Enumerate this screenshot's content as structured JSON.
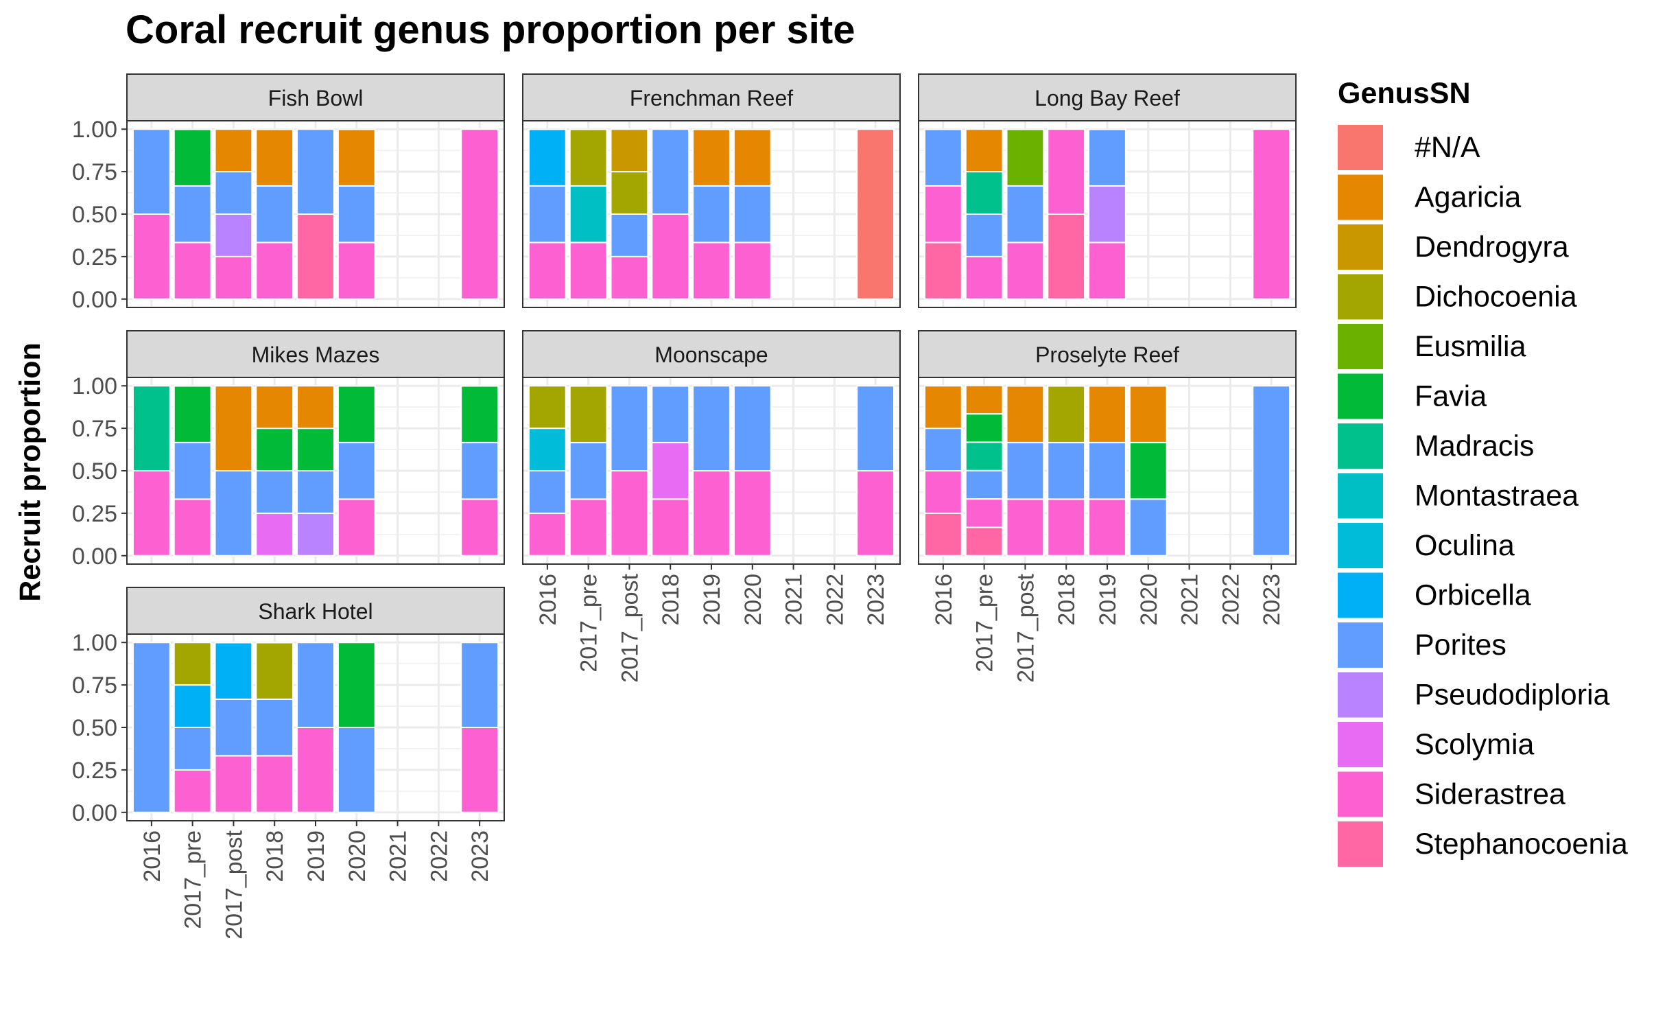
{
  "chart_data": {
    "type": "bar",
    "stacked": true,
    "title": "Coral recruit genus proportion per site",
    "ylabel": "Recruit proportion",
    "xlabel": "",
    "ylim": [
      0,
      1
    ],
    "y_ticks": [
      "0.00",
      "0.25",
      "0.50",
      "0.75",
      "1.00"
    ],
    "categories": [
      "2016",
      "2017_pre",
      "2017_post",
      "2018",
      "2019",
      "2020",
      "2021",
      "2022",
      "2023"
    ],
    "grid": true,
    "legend": {
      "title": "GenusSN",
      "placement": "right",
      "entries": [
        {
          "name": "#N/A",
          "color": "#F8766D"
        },
        {
          "name": "Agaricia",
          "color": "#E58700"
        },
        {
          "name": "Dendrogyra",
          "color": "#C99800"
        },
        {
          "name": "Dichocoenia",
          "color": "#A3A500"
        },
        {
          "name": "Eusmilia",
          "color": "#6BB100"
        },
        {
          "name": "Favia",
          "color": "#00BA38"
        },
        {
          "name": "Madracis",
          "color": "#00C08B"
        },
        {
          "name": "Montastraea",
          "color": "#00BFC4"
        },
        {
          "name": "Oculina",
          "color": "#00BCD8"
        },
        {
          "name": "Orbicella",
          "color": "#00B0F6"
        },
        {
          "name": "Porites",
          "color": "#619CFF"
        },
        {
          "name": "Pseudodiploria",
          "color": "#B983FF"
        },
        {
          "name": "Scolymia",
          "color": "#E76BF3"
        },
        {
          "name": "Siderastrea",
          "color": "#FD61D1"
        },
        {
          "name": "Stephanocoenia",
          "color": "#FF67A4"
        }
      ]
    },
    "facets": [
      {
        "site": "Fish Bowl",
        "bars": [
          {
            "x": "2016",
            "stack": [
              {
                "genus": "Siderastrea",
                "value": 0.5
              },
              {
                "genus": "Porites",
                "value": 0.5
              }
            ]
          },
          {
            "x": "2017_pre",
            "stack": [
              {
                "genus": "Siderastrea",
                "value": 0.333
              },
              {
                "genus": "Porites",
                "value": 0.333
              },
              {
                "genus": "Favia",
                "value": 0.333
              }
            ]
          },
          {
            "x": "2017_post",
            "stack": [
              {
                "genus": "Siderastrea",
                "value": 0.25
              },
              {
                "genus": "Pseudodiploria",
                "value": 0.25
              },
              {
                "genus": "Porites",
                "value": 0.25
              },
              {
                "genus": "Agaricia",
                "value": 0.25
              }
            ]
          },
          {
            "x": "2018",
            "stack": [
              {
                "genus": "Siderastrea",
                "value": 0.333
              },
              {
                "genus": "Porites",
                "value": 0.333
              },
              {
                "genus": "Agaricia",
                "value": 0.333
              }
            ]
          },
          {
            "x": "2019",
            "stack": [
              {
                "genus": "Stephanocoenia",
                "value": 0.5
              },
              {
                "genus": "Porites",
                "value": 0.5
              }
            ]
          },
          {
            "x": "2020",
            "stack": [
              {
                "genus": "Siderastrea",
                "value": 0.333
              },
              {
                "genus": "Porites",
                "value": 0.333
              },
              {
                "genus": "Agaricia",
                "value": 0.333
              }
            ]
          },
          {
            "x": "2023",
            "stack": [
              {
                "genus": "Siderastrea",
                "value": 1.0
              }
            ]
          }
        ]
      },
      {
        "site": "Frenchman Reef",
        "bars": [
          {
            "x": "2016",
            "stack": [
              {
                "genus": "Siderastrea",
                "value": 0.333
              },
              {
                "genus": "Porites",
                "value": 0.333
              },
              {
                "genus": "Orbicella",
                "value": 0.333
              }
            ]
          },
          {
            "x": "2017_pre",
            "stack": [
              {
                "genus": "Siderastrea",
                "value": 0.333
              },
              {
                "genus": "Montastraea",
                "value": 0.333
              },
              {
                "genus": "Dichocoenia",
                "value": 0.333
              }
            ]
          },
          {
            "x": "2017_post",
            "stack": [
              {
                "genus": "Siderastrea",
                "value": 0.25
              },
              {
                "genus": "Porites",
                "value": 0.25
              },
              {
                "genus": "Dichocoenia",
                "value": 0.25
              },
              {
                "genus": "Dendrogyra",
                "value": 0.25
              }
            ]
          },
          {
            "x": "2018",
            "stack": [
              {
                "genus": "Siderastrea",
                "value": 0.5
              },
              {
                "genus": "Porites",
                "value": 0.5
              }
            ]
          },
          {
            "x": "2019",
            "stack": [
              {
                "genus": "Siderastrea",
                "value": 0.333
              },
              {
                "genus": "Porites",
                "value": 0.333
              },
              {
                "genus": "Agaricia",
                "value": 0.333
              }
            ]
          },
          {
            "x": "2020",
            "stack": [
              {
                "genus": "Siderastrea",
                "value": 0.333
              },
              {
                "genus": "Porites",
                "value": 0.333
              },
              {
                "genus": "Agaricia",
                "value": 0.333
              }
            ]
          },
          {
            "x": "2023",
            "stack": [
              {
                "genus": "#N/A",
                "value": 1.0
              }
            ]
          }
        ]
      },
      {
        "site": "Long Bay Reef",
        "bars": [
          {
            "x": "2016",
            "stack": [
              {
                "genus": "Stephanocoenia",
                "value": 0.333
              },
              {
                "genus": "Siderastrea",
                "value": 0.333
              },
              {
                "genus": "Porites",
                "value": 0.333
              }
            ]
          },
          {
            "x": "2017_pre",
            "stack": [
              {
                "genus": "Siderastrea",
                "value": 0.25
              },
              {
                "genus": "Porites",
                "value": 0.25
              },
              {
                "genus": "Madracis",
                "value": 0.25
              },
              {
                "genus": "Agaricia",
                "value": 0.25
              }
            ]
          },
          {
            "x": "2017_post",
            "stack": [
              {
                "genus": "Siderastrea",
                "value": 0.333
              },
              {
                "genus": "Porites",
                "value": 0.333
              },
              {
                "genus": "Eusmilia",
                "value": 0.333
              }
            ]
          },
          {
            "x": "2018",
            "stack": [
              {
                "genus": "Stephanocoenia",
                "value": 0.5
              },
              {
                "genus": "Siderastrea",
                "value": 0.5
              }
            ]
          },
          {
            "x": "2019",
            "stack": [
              {
                "genus": "Siderastrea",
                "value": 0.333
              },
              {
                "genus": "Pseudodiploria",
                "value": 0.333
              },
              {
                "genus": "Porites",
                "value": 0.333
              }
            ]
          },
          {
            "x": "2023",
            "stack": [
              {
                "genus": "Siderastrea",
                "value": 1.0
              }
            ]
          }
        ]
      },
      {
        "site": "Mikes Mazes",
        "bars": [
          {
            "x": "2016",
            "stack": [
              {
                "genus": "Siderastrea",
                "value": 0.5
              },
              {
                "genus": "Madracis",
                "value": 0.5
              }
            ]
          },
          {
            "x": "2017_pre",
            "stack": [
              {
                "genus": "Siderastrea",
                "value": 0.333
              },
              {
                "genus": "Porites",
                "value": 0.333
              },
              {
                "genus": "Favia",
                "value": 0.333
              }
            ]
          },
          {
            "x": "2017_post",
            "stack": [
              {
                "genus": "Porites",
                "value": 0.5
              },
              {
                "genus": "Agaricia",
                "value": 0.5
              }
            ]
          },
          {
            "x": "2018",
            "stack": [
              {
                "genus": "Scolymia",
                "value": 0.25
              },
              {
                "genus": "Porites",
                "value": 0.25
              },
              {
                "genus": "Favia",
                "value": 0.25
              },
              {
                "genus": "Agaricia",
                "value": 0.25
              }
            ]
          },
          {
            "x": "2019",
            "stack": [
              {
                "genus": "Pseudodiploria",
                "value": 0.25
              },
              {
                "genus": "Porites",
                "value": 0.25
              },
              {
                "genus": "Favia",
                "value": 0.25
              },
              {
                "genus": "Agaricia",
                "value": 0.25
              }
            ]
          },
          {
            "x": "2020",
            "stack": [
              {
                "genus": "Siderastrea",
                "value": 0.333
              },
              {
                "genus": "Porites",
                "value": 0.333
              },
              {
                "genus": "Favia",
                "value": 0.333
              }
            ]
          },
          {
            "x": "2023",
            "stack": [
              {
                "genus": "Siderastrea",
                "value": 0.333
              },
              {
                "genus": "Porites",
                "value": 0.333
              },
              {
                "genus": "Favia",
                "value": 0.333
              }
            ]
          }
        ]
      },
      {
        "site": "Moonscape",
        "bars": [
          {
            "x": "2016",
            "stack": [
              {
                "genus": "Siderastrea",
                "value": 0.25
              },
              {
                "genus": "Porites",
                "value": 0.25
              },
              {
                "genus": "Oculina",
                "value": 0.25
              },
              {
                "genus": "Dichocoenia",
                "value": 0.25
              }
            ]
          },
          {
            "x": "2017_pre",
            "stack": [
              {
                "genus": "Siderastrea",
                "value": 0.333
              },
              {
                "genus": "Porites",
                "value": 0.333
              },
              {
                "genus": "Dichocoenia",
                "value": 0.333
              }
            ]
          },
          {
            "x": "2017_post",
            "stack": [
              {
                "genus": "Siderastrea",
                "value": 0.5
              },
              {
                "genus": "Porites",
                "value": 0.5
              }
            ]
          },
          {
            "x": "2018",
            "stack": [
              {
                "genus": "Siderastrea",
                "value": 0.333
              },
              {
                "genus": "Scolymia",
                "value": 0.333
              },
              {
                "genus": "Porites",
                "value": 0.333
              }
            ]
          },
          {
            "x": "2019",
            "stack": [
              {
                "genus": "Siderastrea",
                "value": 0.5
              },
              {
                "genus": "Porites",
                "value": 0.5
              }
            ]
          },
          {
            "x": "2020",
            "stack": [
              {
                "genus": "Siderastrea",
                "value": 0.5
              },
              {
                "genus": "Porites",
                "value": 0.5
              }
            ]
          },
          {
            "x": "2023",
            "stack": [
              {
                "genus": "Siderastrea",
                "value": 0.5
              },
              {
                "genus": "Porites",
                "value": 0.5
              }
            ]
          }
        ]
      },
      {
        "site": "Proselyte Reef",
        "bars": [
          {
            "x": "2016",
            "stack": [
              {
                "genus": "Stephanocoenia",
                "value": 0.25
              },
              {
                "genus": "Siderastrea",
                "value": 0.25
              },
              {
                "genus": "Porites",
                "value": 0.25
              },
              {
                "genus": "Agaricia",
                "value": 0.25
              }
            ]
          },
          {
            "x": "2017_pre",
            "stack": [
              {
                "genus": "Stephanocoenia",
                "value": 0.167
              },
              {
                "genus": "Siderastrea",
                "value": 0.167
              },
              {
                "genus": "Porites",
                "value": 0.167
              },
              {
                "genus": "Madracis",
                "value": 0.167
              },
              {
                "genus": "Favia",
                "value": 0.167
              },
              {
                "genus": "Agaricia",
                "value": 0.167
              }
            ]
          },
          {
            "x": "2017_post",
            "stack": [
              {
                "genus": "Siderastrea",
                "value": 0.333
              },
              {
                "genus": "Porites",
                "value": 0.333
              },
              {
                "genus": "Agaricia",
                "value": 0.333
              }
            ]
          },
          {
            "x": "2018",
            "stack": [
              {
                "genus": "Siderastrea",
                "value": 0.333
              },
              {
                "genus": "Porites",
                "value": 0.333
              },
              {
                "genus": "Dichocoenia",
                "value": 0.333
              }
            ]
          },
          {
            "x": "2019",
            "stack": [
              {
                "genus": "Siderastrea",
                "value": 0.333
              },
              {
                "genus": "Porites",
                "value": 0.333
              },
              {
                "genus": "Agaricia",
                "value": 0.333
              }
            ]
          },
          {
            "x": "2020",
            "stack": [
              {
                "genus": "Porites",
                "value": 0.333
              },
              {
                "genus": "Favia",
                "value": 0.333
              },
              {
                "genus": "Agaricia",
                "value": 0.333
              }
            ]
          },
          {
            "x": "2023",
            "stack": [
              {
                "genus": "Porites",
                "value": 1.0
              }
            ]
          }
        ]
      },
      {
        "site": "Shark Hotel",
        "bars": [
          {
            "x": "2016",
            "stack": [
              {
                "genus": "Porites",
                "value": 1.0
              }
            ]
          },
          {
            "x": "2017_pre",
            "stack": [
              {
                "genus": "Siderastrea",
                "value": 0.25
              },
              {
                "genus": "Porites",
                "value": 0.25
              },
              {
                "genus": "Orbicella",
                "value": 0.25
              },
              {
                "genus": "Dichocoenia",
                "value": 0.25
              }
            ]
          },
          {
            "x": "2017_post",
            "stack": [
              {
                "genus": "Siderastrea",
                "value": 0.333
              },
              {
                "genus": "Porites",
                "value": 0.333
              },
              {
                "genus": "Orbicella",
                "value": 0.333
              }
            ]
          },
          {
            "x": "2018",
            "stack": [
              {
                "genus": "Siderastrea",
                "value": 0.333
              },
              {
                "genus": "Porites",
                "value": 0.333
              },
              {
                "genus": "Dichocoenia",
                "value": 0.333
              }
            ]
          },
          {
            "x": "2019",
            "stack": [
              {
                "genus": "Siderastrea",
                "value": 0.5
              },
              {
                "genus": "Porites",
                "value": 0.5
              }
            ]
          },
          {
            "x": "2020",
            "stack": [
              {
                "genus": "Porites",
                "value": 0.5
              },
              {
                "genus": "Favia",
                "value": 0.5
              }
            ]
          },
          {
            "x": "2023",
            "stack": [
              {
                "genus": "Siderastrea",
                "value": 0.5
              },
              {
                "genus": "Porites",
                "value": 0.5
              }
            ]
          }
        ]
      }
    ]
  }
}
